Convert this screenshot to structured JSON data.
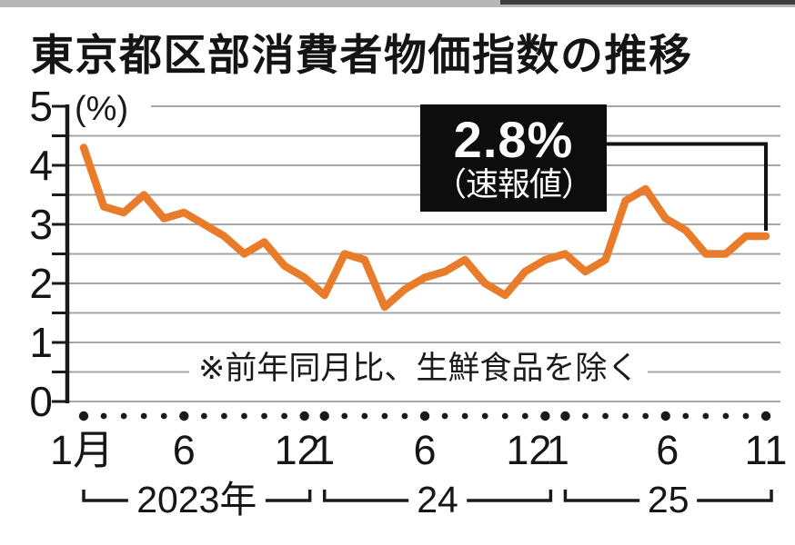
{
  "header": {
    "title": "東京都区部消費者物価指数の推移"
  },
  "chart": {
    "unit_label": "(%)",
    "note": "※前年同月比、生鮮食品を除く",
    "callout": {
      "value": "2.8%",
      "qualifier": "（速報値）"
    },
    "y_axis_labels": [
      "5",
      "4",
      "3",
      "2",
      "1",
      "0"
    ],
    "x_axis": {
      "month_labels": [
        {
          "text": "1月",
          "month_index": 0,
          "dx": -2
        },
        {
          "text": "6",
          "month_index": 5,
          "dx": 0
        },
        {
          "text": "12",
          "month_index": 11,
          "dx": -8
        },
        {
          "text": "1",
          "month_index": 12,
          "dx": -1
        },
        {
          "text": "6",
          "month_index": 17,
          "dx": 0
        },
        {
          "text": "12",
          "month_index": 23,
          "dx": -18
        },
        {
          "text": "1",
          "month_index": 24,
          "dx": -8
        },
        {
          "text": "6",
          "month_index": 29,
          "dx": 2
        },
        {
          "text": "11",
          "month_index": 34,
          "dx": 0
        }
      ],
      "year_brackets": [
        {
          "label": "2023年",
          "start_index": 0,
          "end_index": 11
        },
        {
          "label": "24",
          "start_index": 12,
          "end_index": 23
        },
        {
          "label": "25",
          "start_index": 24,
          "end_index": 34
        }
      ]
    }
  },
  "colors": {
    "line": "#e97c2b",
    "grid": "#a6a6a6",
    "axis": "#1a1a1a",
    "tick_dot": "#1a1a1a",
    "callout_bg": "#0d0d0d",
    "callout_text": "#ffffff",
    "background": "#ffffff"
  },
  "chart_data": {
    "type": "line",
    "title": "東京都区部消費者物価指数の推移",
    "xlabel": "",
    "ylabel": "%",
    "ylim": [
      0,
      5
    ],
    "y_minor_step": 0.5,
    "grid": "horizontal",
    "legend": "none",
    "series_note": "前年同月比、生鮮食品を除く",
    "x": [
      "2023-01",
      "2023-02",
      "2023-03",
      "2023-04",
      "2023-05",
      "2023-06",
      "2023-07",
      "2023-08",
      "2023-09",
      "2023-10",
      "2023-11",
      "2023-12",
      "2024-01",
      "2024-02",
      "2024-03",
      "2024-04",
      "2024-05",
      "2024-06",
      "2024-07",
      "2024-08",
      "2024-09",
      "2024-10",
      "2024-11",
      "2024-12",
      "2025-01",
      "2025-02",
      "2025-03",
      "2025-04",
      "2025-05",
      "2025-06",
      "2025-07",
      "2025-08",
      "2025-09",
      "2025-10",
      "2025-11"
    ],
    "values": [
      4.3,
      3.3,
      3.2,
      3.5,
      3.1,
      3.2,
      3.0,
      2.8,
      2.5,
      2.7,
      2.3,
      2.1,
      1.8,
      2.5,
      2.4,
      1.6,
      1.9,
      2.1,
      2.2,
      2.4,
      2.0,
      1.8,
      2.2,
      2.4,
      2.5,
      2.2,
      2.4,
      3.4,
      3.6,
      3.1,
      2.9,
      2.5,
      2.5,
      2.8,
      2.8
    ],
    "annotation": {
      "label": "2.8%（速報値）",
      "x": "2025-11",
      "y": 2.8
    }
  }
}
